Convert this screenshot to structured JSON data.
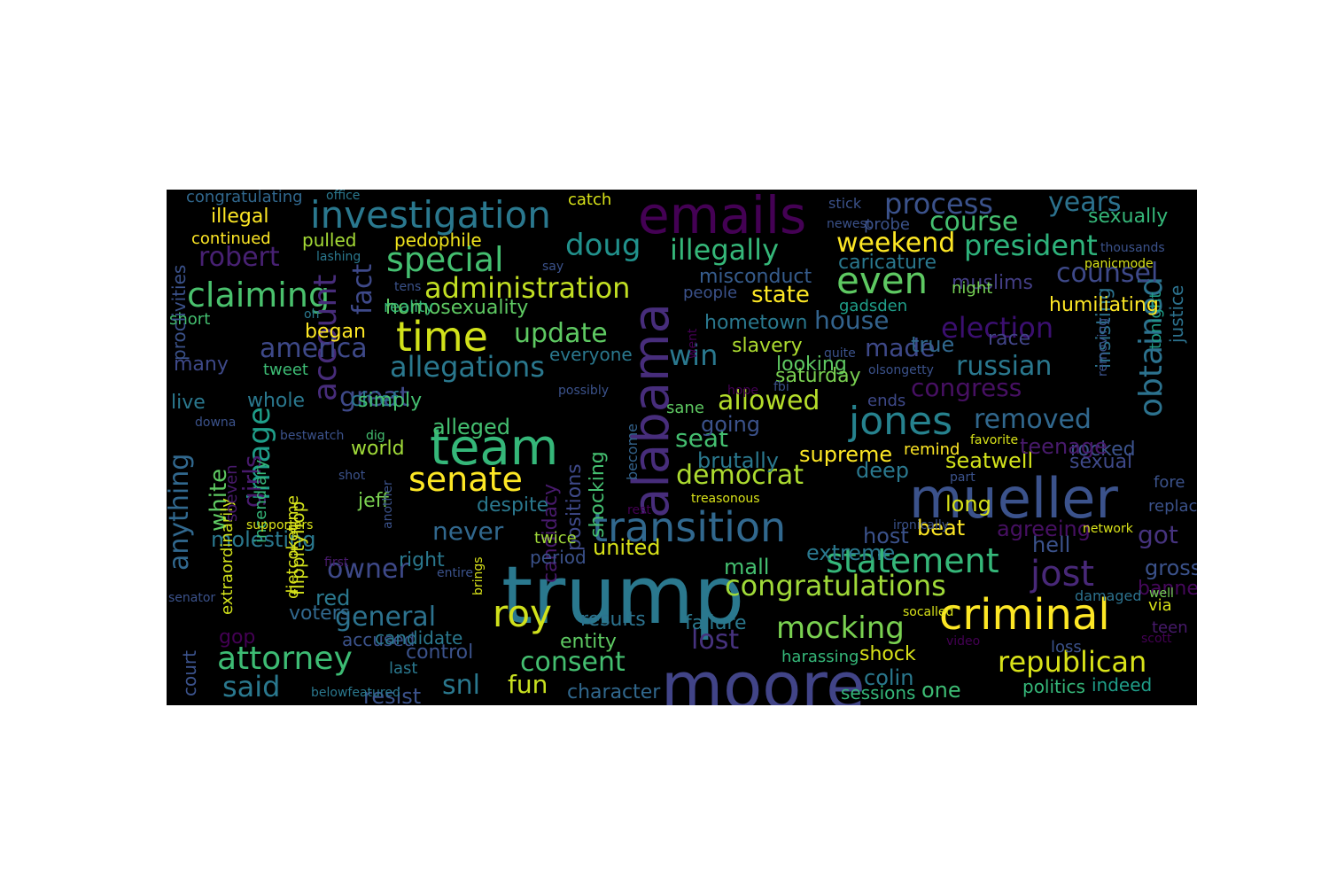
{
  "words": [
    {
      "text": "trump",
      "color": "#2a788e"
    },
    {
      "text": "moore",
      "color": "#414487"
    },
    {
      "text": "mueller",
      "color": "#3b528b"
    },
    {
      "text": "emails",
      "color": "#440154"
    },
    {
      "text": "alabama",
      "color": "#472d7b"
    },
    {
      "text": "team",
      "color": "#35b779"
    },
    {
      "text": "investigation",
      "color": "#2a788e"
    },
    {
      "text": "criminal",
      "color": "#fde725"
    },
    {
      "text": "transition",
      "color": "#31688e"
    },
    {
      "text": "time",
      "color": "#d2e21b"
    },
    {
      "text": "jones",
      "color": "#26828e"
    },
    {
      "text": "roy",
      "color": "#d0e11c"
    },
    {
      "text": "senate",
      "color": "#fde725"
    },
    {
      "text": "statement",
      "color": "#35b779"
    },
    {
      "text": "obtained",
      "color": "#2c728e"
    },
    {
      "text": "attorney",
      "color": "#3dbc74"
    },
    {
      "text": "special",
      "color": "#44bf70"
    },
    {
      "text": "claiming",
      "color": "#4ac16d"
    },
    {
      "text": "even",
      "color": "#5ec962"
    },
    {
      "text": "jost",
      "color": "#482878"
    },
    {
      "text": "image",
      "color": "#1f9e89"
    },
    {
      "text": "account",
      "color": "#472c7a"
    },
    {
      "text": "congratulations",
      "color": "#a0da39"
    },
    {
      "text": "administration",
      "color": "#c2df23"
    },
    {
      "text": "allegations",
      "color": "#2a788e"
    },
    {
      "text": "republican",
      "color": "#d8e219"
    },
    {
      "text": "doug",
      "color": "#21918c"
    },
    {
      "text": "illegally",
      "color": "#35b779"
    },
    {
      "text": "mocking",
      "color": "#7ad151"
    },
    {
      "text": "process",
      "color": "#3b528b"
    },
    {
      "text": "president",
      "color": "#2eb37c"
    },
    {
      "text": "counsel",
      "color": "#3e4989"
    },
    {
      "text": "update",
      "color": "#5ec962"
    },
    {
      "text": "said",
      "color": "#2a788e"
    },
    {
      "text": "election",
      "color": "#3b0f70"
    },
    {
      "text": "removed",
      "color": "#31688e"
    },
    {
      "text": "weekend",
      "color": "#fde725"
    },
    {
      "text": "years",
      "color": "#2c728e"
    },
    {
      "text": "course",
      "color": "#44bf70"
    },
    {
      "text": "robert",
      "color": "#482173"
    },
    {
      "text": "america",
      "color": "#3e4989"
    },
    {
      "text": "fact",
      "color": "#3e4989"
    },
    {
      "text": "great",
      "color": "#3e4989"
    },
    {
      "text": "win",
      "color": "#2a788e"
    },
    {
      "text": "made",
      "color": "#3e4989"
    },
    {
      "text": "house",
      "color": "#33638d"
    },
    {
      "text": "russian",
      "color": "#2a788e"
    },
    {
      "text": "congress",
      "color": "#471063"
    },
    {
      "text": "allowed",
      "color": "#b5de2b"
    },
    {
      "text": "democrat",
      "color": "#addc30"
    },
    {
      "text": "state",
      "color": "#fde725"
    },
    {
      "text": "seat",
      "color": "#44bf70"
    },
    {
      "text": "owner",
      "color": "#3e4989"
    },
    {
      "text": "general",
      "color": "#2c728e"
    },
    {
      "text": "consent",
      "color": "#44bf70"
    },
    {
      "text": "lost",
      "color": "#46327e"
    },
    {
      "text": "fun",
      "color": "#c8e020"
    },
    {
      "text": "snl",
      "color": "#2a788e"
    },
    {
      "text": "never",
      "color": "#31688e"
    },
    {
      "text": "girls",
      "color": "#481a6c"
    },
    {
      "text": "white",
      "color": "#5ec962"
    },
    {
      "text": "anything",
      "color": "#31688e"
    },
    {
      "text": "got",
      "color": "#46337f"
    },
    {
      "text": "sexually",
      "color": "#35b779"
    },
    {
      "text": "justice",
      "color": "#2c728e"
    },
    {
      "text": "insisting",
      "color": "#2c728e"
    },
    {
      "text": "tonight",
      "color": "#1f9e89"
    },
    {
      "text": "illegal",
      "color": "#fde725"
    },
    {
      "text": "continued",
      "color": "#fde725"
    },
    {
      "text": "pulled",
      "color": "#a5db36"
    },
    {
      "text": "pedophile",
      "color": "#f1e51d"
    },
    {
      "text": "misconduct",
      "color": "#365c8d"
    },
    {
      "text": "caricature",
      "color": "#2a788e"
    },
    {
      "text": "muslims",
      "color": "#433e85"
    },
    {
      "text": "people",
      "color": "#3b528b"
    },
    {
      "text": "night",
      "color": "#75d054"
    },
    {
      "text": "gadsden",
      "color": "#1f9e89"
    },
    {
      "text": "humiliating",
      "color": "#fde725"
    },
    {
      "text": "hometown",
      "color": "#2a788e"
    },
    {
      "text": "slavery",
      "color": "#addc30"
    },
    {
      "text": "looking",
      "color": "#5ec962"
    },
    {
      "text": "saturday",
      "color": "#7ad151"
    },
    {
      "text": "race",
      "color": "#414487"
    },
    {
      "text": "true",
      "color": "#31688e"
    },
    {
      "text": "homosexuality",
      "color": "#5ec962"
    },
    {
      "text": "reality",
      "color": "#35b779"
    },
    {
      "text": "began",
      "color": "#fde725"
    },
    {
      "text": "short",
      "color": "#44bf70"
    },
    {
      "text": "tweet",
      "color": "#3dbc74"
    },
    {
      "text": "many",
      "color": "#3e4989"
    },
    {
      "text": "live",
      "color": "#2a788e"
    },
    {
      "text": "whole",
      "color": "#2a788e"
    },
    {
      "text": "chief",
      "color": "#2a788e"
    },
    {
      "text": "simply",
      "color": "#44bf70"
    },
    {
      "text": "alleged",
      "color": "#44bf70"
    },
    {
      "text": "world",
      "color": "#a0da39"
    },
    {
      "text": "despite",
      "color": "#2a788e"
    },
    {
      "text": "jeff",
      "color": "#7ad151"
    },
    {
      "text": "everyone",
      "color": "#2a788e"
    },
    {
      "text": "candidacy",
      "color": "#481a6c"
    },
    {
      "text": "positions",
      "color": "#3e4989"
    },
    {
      "text": "shocking",
      "color": "#44bf70"
    },
    {
      "text": "become",
      "color": "#33638d"
    },
    {
      "text": "going",
      "color": "#3b528b"
    },
    {
      "text": "brutally",
      "color": "#2a788e"
    },
    {
      "text": "supreme",
      "color": "#fde725"
    },
    {
      "text": "deep",
      "color": "#2a788e"
    },
    {
      "text": "sane",
      "color": "#5ec962"
    },
    {
      "text": "ends",
      "color": "#3e4989"
    },
    {
      "text": "remind",
      "color": "#fde725"
    },
    {
      "text": "rocked",
      "color": "#3b528b"
    },
    {
      "text": "seatwell",
      "color": "#d2e21b"
    },
    {
      "text": "teenage",
      "color": "#481a6c"
    },
    {
      "text": "sexual",
      "color": "#3e4989"
    },
    {
      "text": "long",
      "color": "#d8e219"
    },
    {
      "text": "fore",
      "color": "#3b528b"
    },
    {
      "text": "replace",
      "color": "#3b528b"
    },
    {
      "text": "agreeing",
      "color": "#471063"
    },
    {
      "text": "hell",
      "color": "#3b528b"
    },
    {
      "text": "beat",
      "color": "#fde725"
    },
    {
      "text": "host",
      "color": "#3b528b"
    },
    {
      "text": "extreme",
      "color": "#2a788e"
    },
    {
      "text": "united",
      "color": "#d8e219"
    },
    {
      "text": "mall",
      "color": "#44bf70"
    },
    {
      "text": "gross",
      "color": "#3b528b"
    },
    {
      "text": "banned",
      "color": "#46085c"
    },
    {
      "text": "period",
      "color": "#3b528b"
    },
    {
      "text": "twice",
      "color": "#a0da39"
    },
    {
      "text": "right",
      "color": "#2a788e"
    },
    {
      "text": "molesting",
      "color": "#2a788e"
    },
    {
      "text": "flippityflop",
      "color": "#d2e21b"
    },
    {
      "text": "dietcoketime",
      "color": "#d8e219"
    },
    {
      "text": "extraordinarily",
      "color": "#d2e21b"
    },
    {
      "text": "soeven",
      "color": "#481a6c"
    },
    {
      "text": "incendiary",
      "color": "#35b779"
    },
    {
      "text": "red",
      "color": "#2a788e"
    },
    {
      "text": "voters",
      "color": "#31688e"
    },
    {
      "text": "gop",
      "color": "#440154"
    },
    {
      "text": "accused",
      "color": "#3b528b"
    },
    {
      "text": "candidate",
      "color": "#2a788e"
    },
    {
      "text": "control",
      "color": "#3b528b"
    },
    {
      "text": "last",
      "color": "#2a788e"
    },
    {
      "text": "resist",
      "color": "#3b528b"
    },
    {
      "text": "character",
      "color": "#31688e"
    },
    {
      "text": "entity",
      "color": "#5ec962"
    },
    {
      "text": "results",
      "color": "#2c728e"
    },
    {
      "text": "failure",
      "color": "#2a788e"
    },
    {
      "text": "harassing",
      "color": "#35b779"
    },
    {
      "text": "shock",
      "color": "#d8e219"
    },
    {
      "text": "colin",
      "color": "#2a788e"
    },
    {
      "text": "sessions",
      "color": "#35b779"
    },
    {
      "text": "one",
      "color": "#3dbc74"
    },
    {
      "text": "politics",
      "color": "#35b779"
    },
    {
      "text": "indeed",
      "color": "#1f9e89"
    },
    {
      "text": "loss",
      "color": "#3b528b"
    },
    {
      "text": "teen",
      "color": "#481a6c"
    },
    {
      "text": "via",
      "color": "#d8e219"
    },
    {
      "text": "well",
      "color": "#75d054"
    },
    {
      "text": "damaged",
      "color": "#2c728e"
    },
    {
      "text": "court",
      "color": "#3b528b"
    },
    {
      "text": "proclivities",
      "color": "#3b528b"
    },
    {
      "text": "congratulating",
      "color": "#31688e"
    },
    {
      "text": "office",
      "color": "#2a788e"
    },
    {
      "text": "catch",
      "color": "#d8e219"
    },
    {
      "text": "stick",
      "color": "#3b528b"
    },
    {
      "text": "newest",
      "color": "#3b528b"
    },
    {
      "text": "probe",
      "color": "#3b528b"
    },
    {
      "text": "thousands",
      "color": "#3b528b"
    },
    {
      "text": "panicmode",
      "color": "#d8e219"
    },
    {
      "text": "lashing",
      "color": "#2a788e"
    },
    {
      "text": "say",
      "color": "#3b528b"
    },
    {
      "text": "tens",
      "color": "#3b528b"
    },
    {
      "text": "oh",
      "color": "#2a788e"
    },
    {
      "text": "went",
      "color": "#440154"
    },
    {
      "text": "quite",
      "color": "#3b528b"
    },
    {
      "text": "olsongetty",
      "color": "#3b528b"
    },
    {
      "text": "removing",
      "color": "#3b528b"
    },
    {
      "text": "possibly",
      "color": "#3b528b"
    },
    {
      "text": "fbi",
      "color": "#3b528b"
    },
    {
      "text": "hope",
      "color": "#440154"
    },
    {
      "text": "bestwatch",
      "color": "#3b528b"
    },
    {
      "text": "dig",
      "color": "#44bf70"
    },
    {
      "text": "downa",
      "color": "#3b528b"
    },
    {
      "text": "favorite",
      "color": "#d8e219"
    },
    {
      "text": "part",
      "color": "#3b528b"
    },
    {
      "text": "shot",
      "color": "#3b528b"
    },
    {
      "text": "another",
      "color": "#3b528b"
    },
    {
      "text": "treasonous",
      "color": "#d8e219"
    },
    {
      "text": "rest",
      "color": "#440154"
    },
    {
      "text": "supporters",
      "color": "#d8e219"
    },
    {
      "text": "ironically",
      "color": "#3b528b"
    },
    {
      "text": "network",
      "color": "#d8e219"
    },
    {
      "text": "first",
      "color": "#481a6c"
    },
    {
      "text": "brings",
      "color": "#d8e219"
    },
    {
      "text": "entire",
      "color": "#3b528b"
    },
    {
      "text": "senator",
      "color": "#3b528b"
    },
    {
      "text": "socalled",
      "color": "#d8e219"
    },
    {
      "text": "video",
      "color": "#440154"
    },
    {
      "text": "scott",
      "color": "#440154"
    },
    {
      "text": "belowfeatured",
      "color": "#2a788e"
    }
  ]
}
